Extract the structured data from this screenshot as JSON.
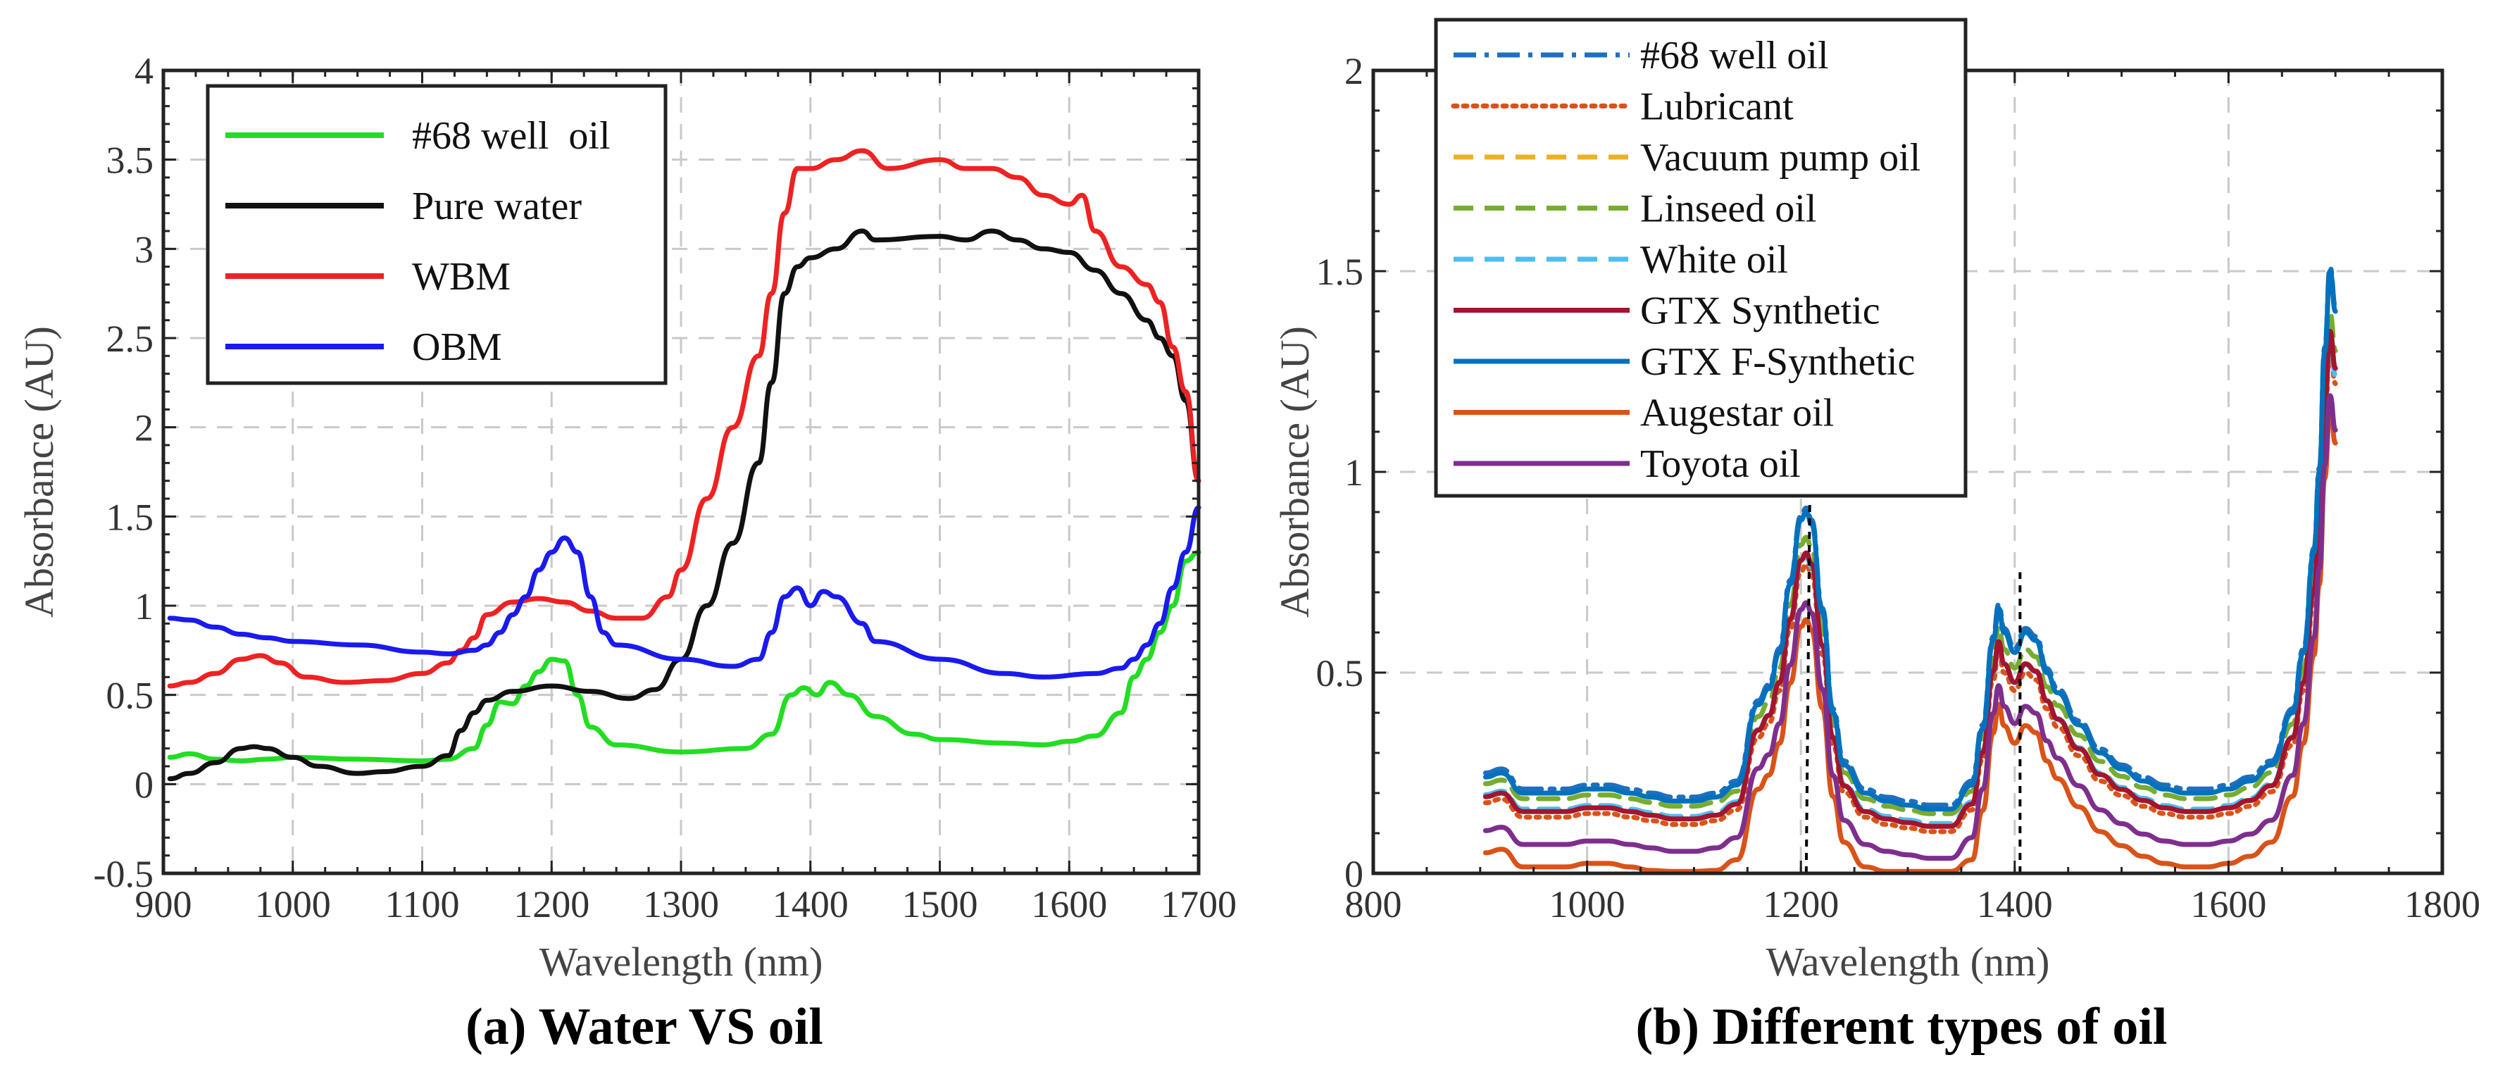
{
  "chart_data": [
    {
      "type": "line",
      "title": "(a) Water VS oil",
      "xlabel": "Wavelength (nm)",
      "ylabel": "Absorbance (AU)",
      "xlim": [
        900,
        1700
      ],
      "ylim": [
        -0.5,
        4
      ],
      "xticks": [
        900,
        1000,
        1100,
        1200,
        1300,
        1400,
        1500,
        1600,
        1700
      ],
      "yticks": [
        -0.5,
        0,
        0.5,
        1,
        1.5,
        2,
        2.5,
        3,
        3.5,
        4
      ],
      "ytick_labels": [
        "-0.5",
        "0",
        "0.5",
        "1",
        "1.5",
        "2",
        "2.5",
        "3",
        "3.5",
        "4"
      ],
      "grid": true,
      "legend": "top-left",
      "series": [
        {
          "name": "#68 well  oil",
          "color": "#22dd22",
          "dash": "solid",
          "x": [
            905,
            920,
            940,
            960,
            980,
            1000,
            1050,
            1100,
            1120,
            1140,
            1150,
            1160,
            1170,
            1180,
            1190,
            1200,
            1210,
            1220,
            1230,
            1250,
            1300,
            1350,
            1370,
            1385,
            1395,
            1405,
            1415,
            1430,
            1450,
            1480,
            1500,
            1550,
            1580,
            1600,
            1620,
            1640,
            1650,
            1660,
            1670,
            1680,
            1690,
            1700
          ],
          "y": [
            0.15,
            0.17,
            0.14,
            0.13,
            0.14,
            0.15,
            0.14,
            0.13,
            0.14,
            0.2,
            0.33,
            0.46,
            0.45,
            0.55,
            0.63,
            0.7,
            0.69,
            0.5,
            0.32,
            0.22,
            0.18,
            0.2,
            0.28,
            0.5,
            0.54,
            0.5,
            0.57,
            0.5,
            0.38,
            0.28,
            0.25,
            0.23,
            0.22,
            0.24,
            0.27,
            0.4,
            0.6,
            0.7,
            0.85,
            1.0,
            1.25,
            1.3
          ]
        },
        {
          "name": "Pure water",
          "color": "#111111",
          "dash": "solid",
          "x": [
            905,
            920,
            940,
            960,
            970,
            980,
            1000,
            1020,
            1050,
            1070,
            1100,
            1120,
            1130,
            1140,
            1150,
            1170,
            1200,
            1230,
            1260,
            1280,
            1300,
            1320,
            1340,
            1360,
            1370,
            1380,
            1390,
            1400,
            1420,
            1440,
            1450,
            1500,
            1520,
            1540,
            1560,
            1580,
            1600,
            1620,
            1640,
            1660,
            1670,
            1680,
            1690,
            1700
          ],
          "y": [
            0.03,
            0.06,
            0.12,
            0.2,
            0.21,
            0.2,
            0.15,
            0.1,
            0.06,
            0.07,
            0.1,
            0.16,
            0.3,
            0.4,
            0.47,
            0.52,
            0.55,
            0.52,
            0.48,
            0.53,
            0.7,
            1.0,
            1.35,
            1.8,
            2.25,
            2.75,
            2.9,
            2.95,
            3.0,
            3.1,
            3.05,
            3.07,
            3.05,
            3.1,
            3.05,
            3.0,
            2.98,
            2.88,
            2.75,
            2.6,
            2.5,
            2.4,
            2.15,
            1.7
          ]
        },
        {
          "name": "WBM",
          "color": "#ee2222",
          "dash": "solid",
          "x": [
            905,
            920,
            940,
            960,
            975,
            990,
            1010,
            1040,
            1070,
            1100,
            1120,
            1130,
            1140,
            1150,
            1170,
            1190,
            1210,
            1230,
            1250,
            1270,
            1290,
            1300,
            1320,
            1340,
            1360,
            1370,
            1380,
            1390,
            1400,
            1420,
            1440,
            1460,
            1500,
            1520,
            1540,
            1560,
            1580,
            1600,
            1610,
            1620,
            1640,
            1660,
            1670,
            1680,
            1690,
            1700
          ],
          "y": [
            0.55,
            0.57,
            0.62,
            0.7,
            0.72,
            0.68,
            0.6,
            0.57,
            0.58,
            0.62,
            0.68,
            0.75,
            0.82,
            0.95,
            1.02,
            1.04,
            1.02,
            0.97,
            0.93,
            0.93,
            1.05,
            1.2,
            1.6,
            2.0,
            2.4,
            2.75,
            3.2,
            3.45,
            3.45,
            3.5,
            3.55,
            3.45,
            3.5,
            3.45,
            3.45,
            3.4,
            3.3,
            3.25,
            3.3,
            3.1,
            2.9,
            2.8,
            2.7,
            2.45,
            2.2,
            1.7
          ]
        },
        {
          "name": "OBM",
          "color": "#1a1aee",
          "dash": "solid",
          "x": [
            905,
            920,
            940,
            960,
            980,
            1000,
            1050,
            1100,
            1120,
            1140,
            1150,
            1160,
            1170,
            1180,
            1190,
            1200,
            1210,
            1220,
            1230,
            1240,
            1250,
            1300,
            1340,
            1360,
            1370,
            1380,
            1390,
            1400,
            1410,
            1420,
            1440,
            1450,
            1500,
            1550,
            1580,
            1620,
            1640,
            1650,
            1660,
            1670,
            1680,
            1690,
            1700
          ],
          "y": [
            0.93,
            0.92,
            0.88,
            0.84,
            0.82,
            0.8,
            0.78,
            0.74,
            0.73,
            0.75,
            0.78,
            0.85,
            0.95,
            1.05,
            1.2,
            1.3,
            1.38,
            1.3,
            1.05,
            0.85,
            0.78,
            0.7,
            0.66,
            0.7,
            0.85,
            1.05,
            1.1,
            1.0,
            1.08,
            1.05,
            0.9,
            0.8,
            0.7,
            0.62,
            0.6,
            0.62,
            0.65,
            0.7,
            0.78,
            0.9,
            1.1,
            1.3,
            1.55
          ]
        }
      ]
    },
    {
      "type": "line",
      "title": "(b) Different types of oil",
      "xlabel": "Wavelength (nm)",
      "ylabel": "Absorbance (AU)",
      "xlim": [
        800,
        1800
      ],
      "ylim": [
        0,
        2
      ],
      "xticks": [
        800,
        1000,
        1200,
        1400,
        1600,
        1800
      ],
      "yticks": [
        0,
        0.5,
        1,
        1.5,
        2
      ],
      "ytick_labels": [
        "0",
        "0.5",
        "1",
        "1.5",
        "2"
      ],
      "grid": true,
      "legend": "top-left",
      "reference_lines_x": [
        1205,
        1405
      ],
      "base_shape": {
        "x": [
          905,
          920,
          940,
          960,
          980,
          1000,
          1020,
          1040,
          1060,
          1080,
          1100,
          1120,
          1140,
          1160,
          1170,
          1180,
          1190,
          1200,
          1205,
          1210,
          1220,
          1230,
          1240,
          1260,
          1280,
          1300,
          1320,
          1340,
          1360,
          1370,
          1380,
          1385,
          1390,
          1400,
          1410,
          1420,
          1430,
          1440,
          1460,
          1480,
          1500,
          1520,
          1540,
          1560,
          1580,
          1600,
          1620,
          1640,
          1660,
          1670,
          1680,
          1685,
          1690,
          1695,
          1700
        ],
        "y": [
          0.24,
          0.25,
          0.2,
          0.2,
          0.2,
          0.21,
          0.21,
          0.2,
          0.19,
          0.18,
          0.18,
          0.19,
          0.22,
          0.42,
          0.46,
          0.55,
          0.72,
          0.88,
          0.9,
          0.87,
          0.65,
          0.4,
          0.27,
          0.2,
          0.18,
          0.17,
          0.16,
          0.16,
          0.22,
          0.36,
          0.58,
          0.66,
          0.6,
          0.55,
          0.6,
          0.58,
          0.5,
          0.45,
          0.37,
          0.3,
          0.26,
          0.23,
          0.21,
          0.2,
          0.2,
          0.21,
          0.23,
          0.27,
          0.4,
          0.55,
          0.8,
          1.0,
          1.3,
          1.5,
          1.4
        ]
      },
      "series": [
        {
          "name": "#68 well oil",
          "color": "#1f6fbf",
          "dash": "dashdot",
          "scale": 1.0,
          "offset": 0.01
        },
        {
          "name": "Lubricant",
          "color": "#d95319",
          "dash": "dotted",
          "scale": 0.9,
          "offset": -0.04
        },
        {
          "name": "Vacuum pump oil",
          "color": "#edb120",
          "dash": "dashed",
          "scale": 0.92,
          "offset": -0.03
        },
        {
          "name": "Linseed oil",
          "color": "#77ac30",
          "dash": "dashed",
          "scale": 0.93,
          "offset": 0.0
        },
        {
          "name": "White oil",
          "color": "#4dbeee",
          "dash": "dashed",
          "scale": 0.9,
          "offset": -0.02
        },
        {
          "name": "GTX Synthetic",
          "color": "#a2142f",
          "dash": "solid",
          "scale": 0.92,
          "offset": -0.03
        },
        {
          "name": "GTX F-Synthetic",
          "color": "#0072bd",
          "dash": "solid",
          "scale": 1.0,
          "offset": 0.0
        },
        {
          "name": "Augestar oil",
          "color": "#d95319",
          "dash": "solid",
          "scale": 0.88,
          "offset": -0.16
        },
        {
          "name": "Toyota oil",
          "color": "#7e2f8e",
          "dash": "solid",
          "scale": 0.86,
          "offset": -0.1
        }
      ]
    }
  ]
}
